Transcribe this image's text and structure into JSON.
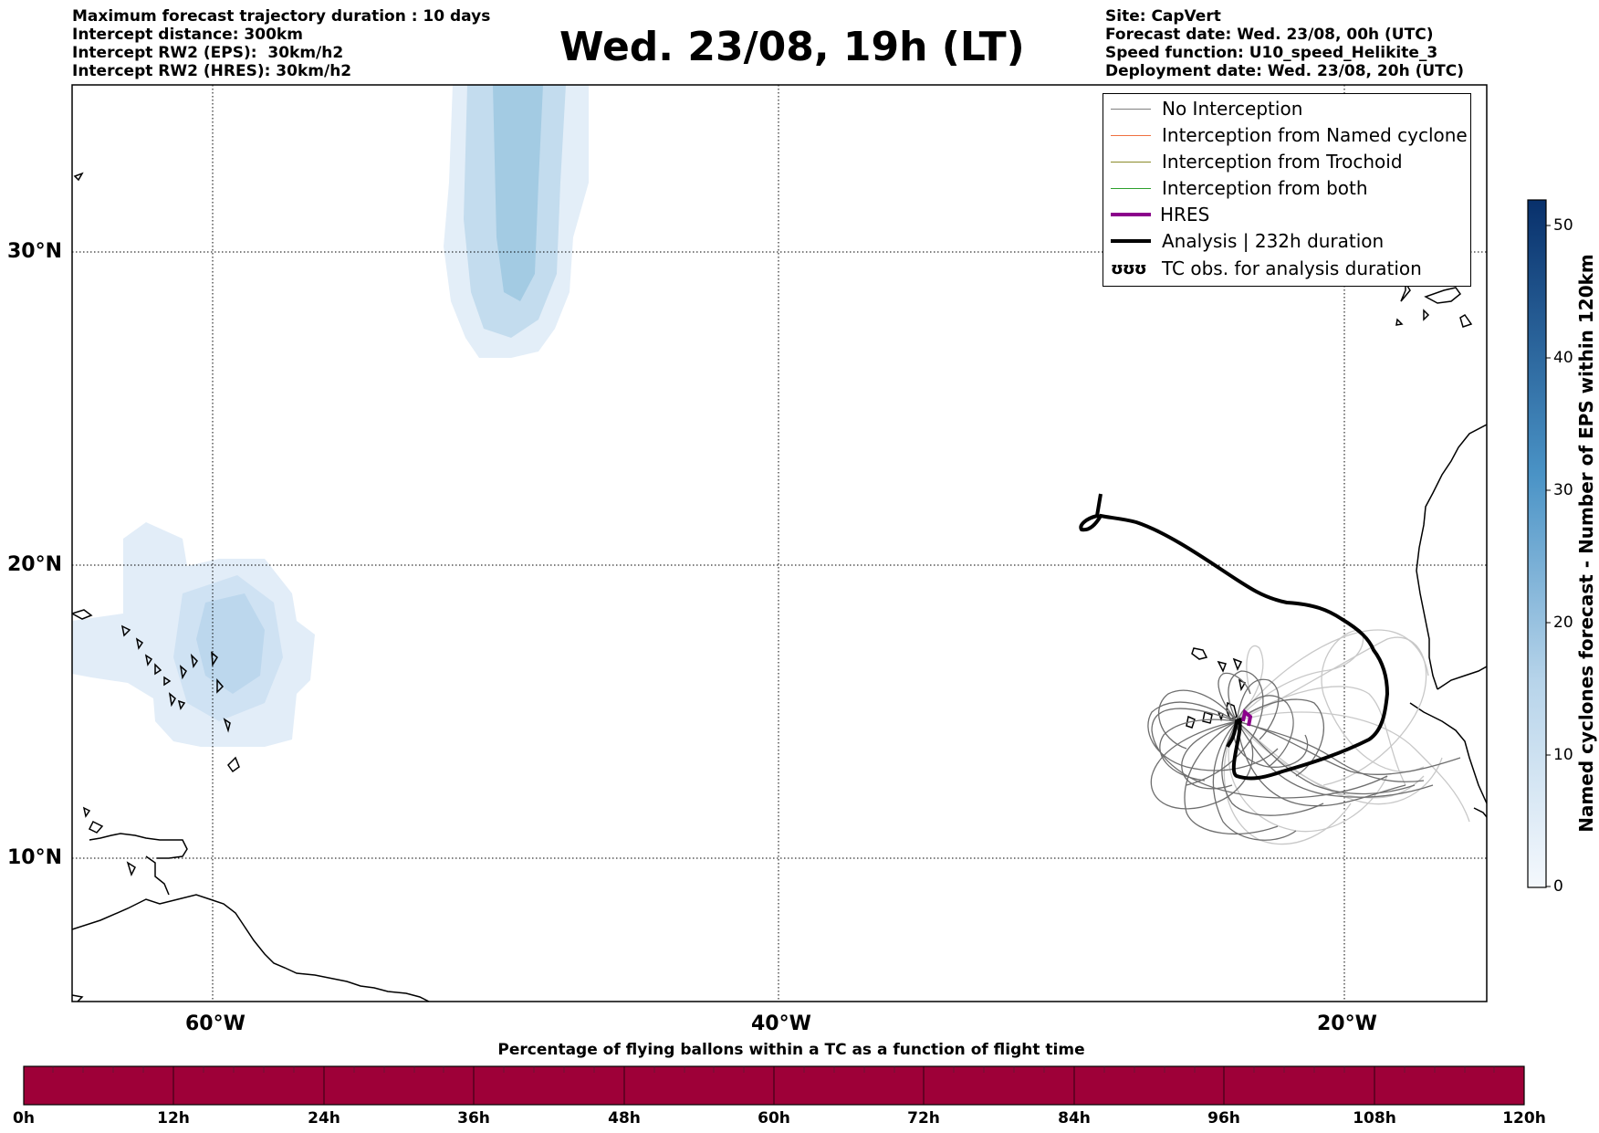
{
  "header": {
    "left_lines": [
      "Maximum forecast trajectory duration : 10 days",
      "Intercept distance: 300km",
      "Intercept RW2 (EPS):  30km/h2",
      "Intercept RW2 (HRES): 30km/h2"
    ],
    "title": "Wed. 23/08, 19h (LT)",
    "right_lines": [
      "Site: CapVert",
      "Forecast date: Wed. 23/08, 00h (UTC)",
      "Speed function: U10_speed_Helikite_3",
      "Deployment date: Wed. 23/08, 20h (UTC)"
    ]
  },
  "map": {
    "lat_labels": [
      "30°N",
      "20°N",
      "10°N"
    ],
    "lon_labels": [
      "60°W",
      "40°W",
      "20°W"
    ]
  },
  "legend": {
    "items": [
      {
        "label": "No Interception",
        "color": "#808080",
        "style": "thin"
      },
      {
        "label": "Interception from Named cyclone",
        "color": "#f07040",
        "style": "thin"
      },
      {
        "label": "Interception from Trochoid",
        "color": "#8b8b2a",
        "style": "thin"
      },
      {
        "label": "Interception from both",
        "color": "#2ca02c",
        "style": "thin"
      },
      {
        "label": "HRES",
        "color": "#8b008b",
        "style": "thick"
      },
      {
        "label": "Analysis | 232h duration",
        "color": "#000000",
        "style": "thick"
      },
      {
        "label": "TC obs. for analysis duration",
        "color": "#000000",
        "style": "symbol",
        "symbol": "ʊʊʊ"
      }
    ]
  },
  "colorbar": {
    "label": "Named cyclones forecast - Number of EPS within 120km",
    "ticks": [
      "50",
      "40",
      "30",
      "20",
      "10",
      "0"
    ],
    "max": 52,
    "color_low": "#e8f0fa",
    "color_high": "#08306b"
  },
  "bottom_bar": {
    "title": "Percentage of flying ballons within a TC as a function of flight time",
    "ticks": [
      "0h",
      "12h",
      "24h",
      "36h",
      "48h",
      "60h",
      "72h",
      "84h",
      "96h",
      "108h",
      "120h"
    ],
    "fill_color": "#9e0038"
  }
}
